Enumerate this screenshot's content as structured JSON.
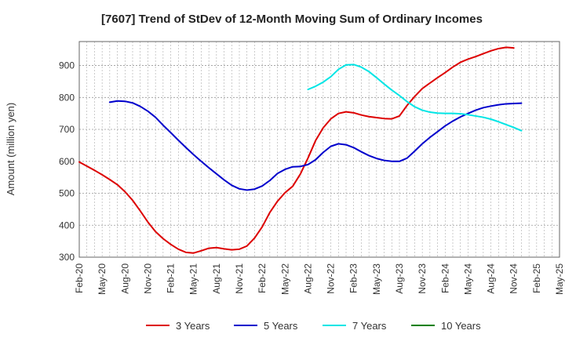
{
  "chart_data": {
    "type": "line",
    "title": "[7607]  Trend of StDev of 12-Month Moving Sum of Ordinary Incomes",
    "ylabel": "Amount (million yen)",
    "xlabel": "",
    "ylim": [
      300,
      975
    ],
    "yticks": [
      300,
      400,
      500,
      600,
      700,
      800,
      900
    ],
    "grid": true,
    "legend_position": "bottom",
    "x_ticks": [
      "Feb-20",
      "May-20",
      "Aug-20",
      "Nov-20",
      "Feb-21",
      "May-21",
      "Aug-21",
      "Nov-21",
      "Feb-22",
      "May-22",
      "Aug-22",
      "Nov-22",
      "Feb-23",
      "May-23",
      "Aug-23",
      "Nov-23",
      "Feb-24",
      "May-24",
      "Aug-24",
      "Nov-24",
      "Feb-25",
      "May-25"
    ],
    "series": [
      {
        "name": "3 Years",
        "color": "#dd0000",
        "start": "Feb-20",
        "values": [
          598,
          585,
          572,
          558,
          543,
          527,
          505,
          478,
          445,
          410,
          380,
          358,
          340,
          325,
          315,
          313,
          320,
          328,
          330,
          326,
          323,
          325,
          335,
          360,
          395,
          440,
          475,
          502,
          522,
          560,
          610,
          665,
          705,
          733,
          750,
          755,
          752,
          745,
          740,
          737,
          734,
          733,
          742,
          775,
          803,
          828,
          845,
          862,
          878,
          895,
          910,
          920,
          928,
          937,
          946,
          953,
          957,
          955
        ]
      },
      {
        "name": "5 Years",
        "color": "#0000cc",
        "start": "Jun-20",
        "values": [
          785,
          789,
          788,
          783,
          772,
          757,
          738,
          713,
          690,
          666,
          643,
          621,
          600,
          580,
          561,
          542,
          525,
          514,
          510,
          513,
          523,
          540,
          562,
          575,
          583,
          584,
          590,
          605,
          628,
          647,
          655,
          652,
          643,
          630,
          618,
          609,
          603,
          600,
          600,
          610,
          632,
          655,
          675,
          693,
          711,
          726,
          739,
          750,
          760,
          768,
          773,
          777,
          780,
          781,
          782
        ]
      },
      {
        "name": "7 Years",
        "color": "#00e5e5",
        "start": "Aug-22",
        "values": [
          825,
          835,
          848,
          865,
          888,
          902,
          903,
          895,
          881,
          862,
          842,
          823,
          806,
          787,
          771,
          760,
          754,
          751,
          750,
          750,
          749,
          746,
          742,
          738,
          732,
          724,
          715,
          706,
          696
        ]
      },
      {
        "name": "10 Years",
        "color": "#008000",
        "start": "",
        "values": []
      }
    ]
  }
}
